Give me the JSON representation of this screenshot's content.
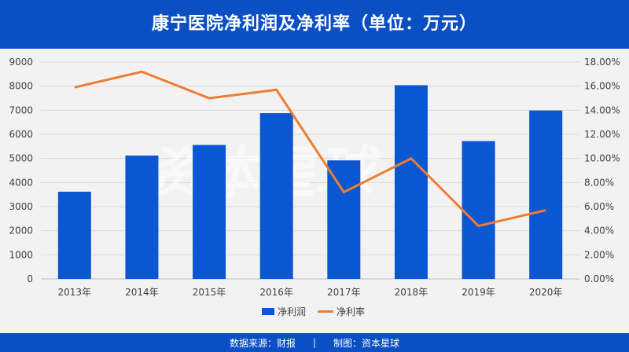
{
  "header": {
    "title": "康宁医院净利润及净利率（单位：万元）"
  },
  "watermark": {
    "text": "资本星球"
  },
  "footer": {
    "source": "数据来源：财报",
    "separator": "|",
    "maker": "制图：资本星球"
  },
  "colors": {
    "title_bg": "#0b4fc4",
    "bar": "#0b56d1",
    "line": "#ed7d31",
    "footer_bg": "#0b4fc4",
    "plot_bg": "#f2f2f2"
  },
  "chart_data": {
    "type": "bar",
    "categories": [
      "2013年",
      "2014年",
      "2015年",
      "2016年",
      "2017年",
      "2018年",
      "2019年",
      "2020年"
    ],
    "series": [
      {
        "name": "净利润",
        "type": "bar",
        "axis": "left",
        "values": [
          3620,
          5120,
          5560,
          6880,
          4920,
          8040,
          5720,
          6990
        ]
      },
      {
        "name": "净利率",
        "type": "line",
        "axis": "right",
        "values": [
          0.159,
          0.172,
          0.15,
          0.157,
          0.072,
          0.1,
          0.044,
          0.057
        ]
      }
    ],
    "y_left": {
      "min": 0,
      "max": 9000,
      "ticks": [
        "0",
        "1000",
        "2000",
        "3000",
        "4000",
        "5000",
        "6000",
        "7000",
        "8000",
        "9000"
      ]
    },
    "y_right": {
      "min": 0,
      "max": 0.18,
      "ticks": [
        "0.00%",
        "2.00%",
        "4.00%",
        "6.00%",
        "8.00%",
        "10.00%",
        "12.00%",
        "14.00%",
        "16.00%",
        "18.00%"
      ]
    },
    "grid": true,
    "legend": "bottom"
  }
}
